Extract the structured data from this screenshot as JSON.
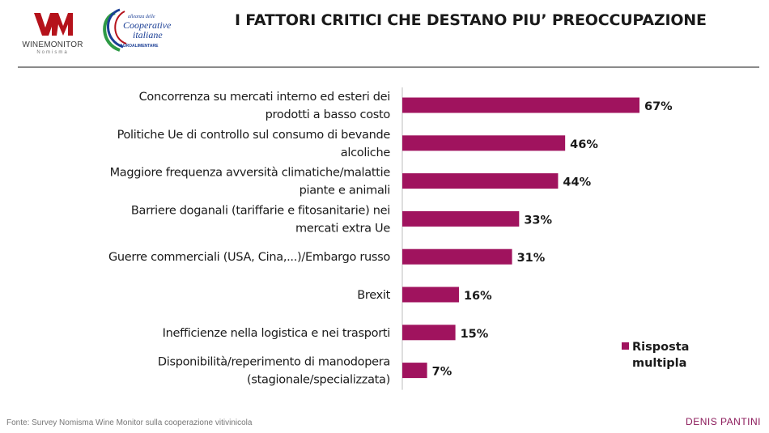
{
  "header": {
    "title": "I FATTORI CRITICI CHE DESTANO PIU’ PREOCCUPAZIONE",
    "logo_winemonitor": "WINEMONITOR",
    "logo_winemonitor_sub": "Nomisma",
    "logo_coop_line1": "alleanza delle",
    "logo_coop_line2": "Cooperative",
    "logo_coop_line3": "italiane",
    "logo_coop_line4": "AGROALIMENTARE"
  },
  "footer": {
    "source": "Fonte: Survey Nomisma Wine Monitor sulla cooperazione vitivinicola",
    "author": "DENIS PANTINI"
  },
  "colors": {
    "bar": "#A0135E",
    "logo_red": "#B5121B",
    "logo_blue": "#1B3F95",
    "logo_green": "#2E9A45",
    "author": "#8B1A5A"
  },
  "chart_data": {
    "type": "bar",
    "orientation": "horizontal",
    "title": "I FATTORI CRITICI CHE DESTANO PIU’ PREOCCUPAZIONE",
    "categories": [
      [
        "Concorrenza su mercati interno ed esteri dei",
        "prodotti a basso costo"
      ],
      [
        "Politiche Ue di controllo sul consumo di bevande",
        "alcoliche"
      ],
      [
        "Maggiore frequenza avversità climatiche/malattie",
        "piante e animali"
      ],
      [
        "Barriere doganali (tariffarie e fitosanitarie) nei",
        "mercati extra Ue"
      ],
      [
        "Guerre commerciali (USA, Cina,...)/Embargo russo"
      ],
      [
        "Brexit"
      ],
      [
        "Inefficienze nella logistica e nei trasporti"
      ],
      [
        "Disponibilità/reperimento di manodopera",
        "(stagionale/specializzata)"
      ]
    ],
    "series": [
      {
        "name": "Risposta multipla",
        "values": [
          67,
          46,
          44,
          33,
          31,
          16,
          15,
          7
        ]
      }
    ],
    "data_labels": [
      "67%",
      "46%",
      "44%",
      "33%",
      "31%",
      "16%",
      "15%",
      "7%"
    ],
    "legend": [
      "Risposta",
      "multipla"
    ],
    "legend_position": "right",
    "xlim": [
      0,
      67
    ],
    "grid": false
  }
}
